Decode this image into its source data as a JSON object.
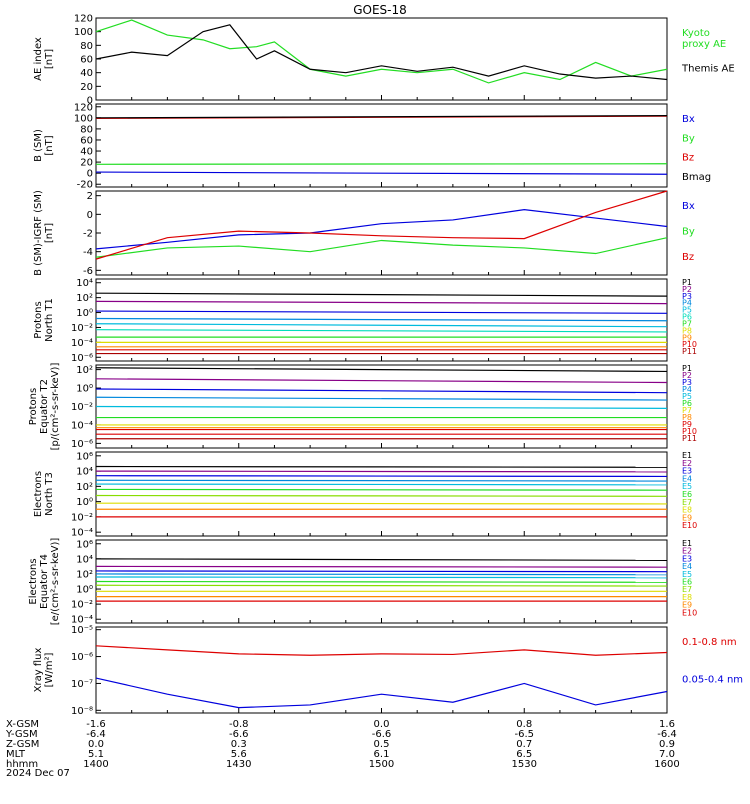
{
  "title": "GOES-18",
  "date_label": "2024 Dec 07",
  "colors": {
    "black": "#000000",
    "green": "#22dd22",
    "blue": "#0000dd",
    "red": "#dd0000",
    "cyan": "#00bbdd",
    "teal": "#00ddbb",
    "yellow": "#dddd00",
    "orange": "#ff8800",
    "purple": "#880088",
    "navy": "#000088",
    "darkred": "#aa0000"
  },
  "chart_data": [
    {
      "type": "line",
      "panel": "ae",
      "ylabel": "AE index\n[nT]",
      "ylim": [
        0,
        120
      ],
      "yticks": [
        "0",
        "20",
        "40",
        "60",
        "80",
        "100",
        "120"
      ],
      "x": [
        -1.6,
        -1.4,
        -1.2,
        -1.0,
        -0.85,
        -0.7,
        -0.6,
        -0.4,
        -0.2,
        0.0,
        0.2,
        0.4,
        0.6,
        0.8,
        1.0,
        1.2,
        1.4,
        1.6
      ],
      "series": [
        {
          "name": "Kyoto\nproxy AE",
          "color": "#22dd22",
          "values": [
            100,
            117,
            95,
            88,
            75,
            78,
            85,
            45,
            35,
            45,
            40,
            45,
            25,
            40,
            30,
            55,
            35,
            45
          ]
        },
        {
          "name": "Themis AE",
          "color": "#000000",
          "values": [
            60,
            70,
            65,
            100,
            110,
            60,
            72,
            45,
            40,
            50,
            42,
            48,
            35,
            50,
            38,
            32,
            35,
            30
          ]
        }
      ]
    },
    {
      "type": "line",
      "panel": "bsm",
      "ylabel": "B (SM)\n[nT]",
      "ylim": [
        -25,
        125
      ],
      "yticks": [
        "-20",
        "0",
        "20",
        "40",
        "60",
        "80",
        "100",
        "120"
      ],
      "x": [
        -1.6,
        1.6
      ],
      "series": [
        {
          "name": "Bx",
          "color": "#0000dd",
          "values": [
            2,
            -2
          ]
        },
        {
          "name": "By",
          "color": "#22dd22",
          "values": [
            16,
            17
          ]
        },
        {
          "name": "Bz",
          "color": "#dd0000",
          "values": [
            99,
            103
          ]
        },
        {
          "name": "Bmag",
          "color": "#000000",
          "values": [
            100,
            104
          ]
        }
      ]
    },
    {
      "type": "line",
      "panel": "bdiff",
      "ylabel": "B (SM)-IGRF (SM)\n[nT]",
      "ylim": [
        -6.5,
        2.5
      ],
      "yticks": [
        "-6",
        "-4",
        "-2",
        "0",
        "2"
      ],
      "x": [
        -1.6,
        -1.2,
        -0.8,
        -0.4,
        0.0,
        0.4,
        0.8,
        1.2,
        1.6
      ],
      "series": [
        {
          "name": "Bx",
          "color": "#0000dd",
          "values": [
            -3.7,
            -3.0,
            -2.2,
            -2.0,
            -1.0,
            -0.6,
            0.5,
            -0.4,
            -1.3
          ]
        },
        {
          "name": "By",
          "color": "#22dd22",
          "values": [
            -4.6,
            -3.6,
            -3.4,
            -4.0,
            -2.8,
            -3.3,
            -3.6,
            -4.2,
            -2.5
          ]
        },
        {
          "name": "Bz",
          "color": "#dd0000",
          "values": [
            -4.8,
            -2.5,
            -1.8,
            -2.0,
            -2.3,
            -2.5,
            -2.6,
            0.2,
            2.5
          ]
        }
      ]
    },
    {
      "type": "line",
      "panel": "protons_t1",
      "ylabel": "Protons\nNorth T1",
      "log": true,
      "ylim": [
        -6.5,
        4.5
      ],
      "yticks": [
        "10⁻⁶",
        "10⁻⁴",
        "10⁻²",
        "10⁰",
        "10²",
        "10⁴"
      ],
      "x": [
        -1.6,
        1.6
      ],
      "series": [
        {
          "name": "P1",
          "color": "#000000",
          "values": [
            2.6,
            2.2
          ]
        },
        {
          "name": "P2",
          "color": "#880088",
          "values": [
            1.5,
            1.2
          ]
        },
        {
          "name": "P3",
          "color": "#0000dd",
          "values": [
            0.2,
            -0.1
          ]
        },
        {
          "name": "P4",
          "color": "#0088dd",
          "values": [
            -0.8,
            -1.1
          ]
        },
        {
          "name": "P5",
          "color": "#00bbdd",
          "values": [
            -1.5,
            -1.9
          ]
        },
        {
          "name": "P6",
          "color": "#00ddbb",
          "values": [
            -2.3,
            -2.6
          ]
        },
        {
          "name": "P7",
          "color": "#22dd22",
          "values": [
            -3.3,
            -3.3
          ]
        },
        {
          "name": "P8",
          "color": "#dddd00",
          "values": [
            -4.0,
            -4.0
          ]
        },
        {
          "name": "P9",
          "color": "#ff8800",
          "values": [
            -4.6,
            -4.6
          ]
        },
        {
          "name": "P10",
          "color": "#dd0000",
          "values": [
            -5.0,
            -5.0
          ]
        },
        {
          "name": "P11",
          "color": "#aa0000",
          "values": [
            -5.5,
            -5.5
          ]
        }
      ]
    },
    {
      "type": "line",
      "panel": "protons_t2",
      "ylabel": "Protons\nEquator T2\n[p/(cm²-s-sr-keV)]",
      "log": true,
      "ylim": [
        -6.5,
        2.5
      ],
      "yticks": [
        "10⁻⁶",
        "10⁻⁴",
        "10⁻²",
        "10⁰",
        "10²"
      ],
      "x": [
        -1.6,
        1.6
      ],
      "series": [
        {
          "name": "P1",
          "color": "#000000",
          "values": [
            2.2,
            1.8
          ]
        },
        {
          "name": "P2",
          "color": "#880088",
          "values": [
            1.0,
            0.6
          ]
        },
        {
          "name": "P3",
          "color": "#0000dd",
          "values": [
            -0.1,
            -0.5
          ]
        },
        {
          "name": "P4",
          "color": "#0088dd",
          "values": [
            -1.0,
            -1.3
          ]
        },
        {
          "name": "P5",
          "color": "#00bbdd",
          "values": [
            -2.0,
            -2.2
          ]
        },
        {
          "name": "P6",
          "color": "#22dd22",
          "values": [
            -3.2,
            -3.2
          ]
        },
        {
          "name": "P7",
          "color": "#dddd00",
          "values": [
            -4.0,
            -4.0
          ]
        },
        {
          "name": "P8",
          "color": "#ff8800",
          "values": [
            -4.3,
            -4.3
          ]
        },
        {
          "name": "P9",
          "color": "#dd0000",
          "values": [
            -4.5,
            -4.5
          ]
        },
        {
          "name": "P10",
          "color": "#dd0000",
          "values": [
            -5.0,
            -5.0
          ]
        },
        {
          "name": "P11",
          "color": "#aa0000",
          "values": [
            -5.5,
            -5.5
          ]
        }
      ]
    },
    {
      "type": "line",
      "panel": "electrons_t3",
      "ylabel": "Electrons\nNorth T3",
      "log": true,
      "ylim": [
        -4.5,
        6.5
      ],
      "yticks": [
        "10⁻⁴",
        "10⁻²",
        "10⁰",
        "10²",
        "10⁴",
        "10⁶"
      ],
      "x": [
        -1.6,
        1.6
      ],
      "series": [
        {
          "name": "E1",
          "color": "#000000",
          "values": [
            4.6,
            4.5
          ]
        },
        {
          "name": "E2",
          "color": "#880088",
          "values": [
            4.0,
            3.9
          ]
        },
        {
          "name": "E3",
          "color": "#0000dd",
          "values": [
            3.4,
            3.3
          ]
        },
        {
          "name": "E4",
          "color": "#0088dd",
          "values": [
            2.8,
            2.7
          ]
        },
        {
          "name": "E5",
          "color": "#00bbdd",
          "values": [
            2.3,
            2.2
          ]
        },
        {
          "name": "E6",
          "color": "#22dd22",
          "values": [
            1.6,
            1.5
          ]
        },
        {
          "name": "E7",
          "color": "#88dd00",
          "values": [
            0.8,
            0.7
          ]
        },
        {
          "name": "E8",
          "color": "#dddd00",
          "values": [
            -0.2,
            -0.3
          ]
        },
        {
          "name": "E9",
          "color": "#ff8800",
          "values": [
            -1.0,
            -1.0
          ]
        },
        {
          "name": "E10",
          "color": "#dd0000",
          "values": [
            -2.0,
            -2.0
          ]
        }
      ]
    },
    {
      "type": "line",
      "panel": "electrons_t4",
      "ylabel": "Electrons\nEquator T4\n[e/(cm²-s-sr-keV)]",
      "log": true,
      "ylim": [
        -4.5,
        6.5
      ],
      "yticks": [
        "10⁻⁴",
        "10⁻²",
        "10⁰",
        "10²",
        "10⁴",
        "10⁶"
      ],
      "x": [
        -1.6,
        1.6
      ],
      "series": [
        {
          "name": "E1",
          "color": "#000000",
          "values": [
            4.0,
            3.8
          ]
        },
        {
          "name": "E2",
          "color": "#880088",
          "values": [
            3.0,
            2.9
          ]
        },
        {
          "name": "E3",
          "color": "#0000dd",
          "values": [
            2.4,
            2.3
          ]
        },
        {
          "name": "E4",
          "color": "#0088dd",
          "values": [
            2.0,
            1.9
          ]
        },
        {
          "name": "E5",
          "color": "#00bbdd",
          "values": [
            1.6,
            1.5
          ]
        },
        {
          "name": "E6",
          "color": "#22dd22",
          "values": [
            1.0,
            0.9
          ]
        },
        {
          "name": "E7",
          "color": "#88dd00",
          "values": [
            0.5,
            0.4
          ]
        },
        {
          "name": "E8",
          "color": "#dddd00",
          "values": [
            -0.3,
            -0.3
          ]
        },
        {
          "name": "E9",
          "color": "#ff8800",
          "values": [
            -1.0,
            -1.0
          ]
        },
        {
          "name": "E10",
          "color": "#dd0000",
          "values": [
            -1.6,
            -1.6
          ]
        }
      ]
    },
    {
      "type": "line",
      "panel": "xray",
      "ylabel": "Xray flux\n[W/m²]",
      "log": true,
      "ylim": [
        -8.1,
        -4.9
      ],
      "yticks": [
        "10⁻⁸",
        "10⁻⁷",
        "10⁻⁶",
        "10⁻⁵"
      ],
      "x": [
        -1.6,
        -1.2,
        -0.8,
        -0.4,
        0.0,
        0.4,
        0.8,
        1.2,
        1.6
      ],
      "series": [
        {
          "name": "0.1-0.8 nm",
          "color": "#dd0000",
          "values": [
            -5.6,
            -5.75,
            -5.9,
            -5.95,
            -5.9,
            -5.92,
            -5.75,
            -5.95,
            -5.85
          ]
        },
        {
          "name": "0.05-0.4 nm",
          "color": "#0000dd",
          "values": [
            -6.8,
            -7.4,
            -7.9,
            -7.8,
            -7.4,
            -7.7,
            -7.0,
            -7.8,
            -7.3
          ]
        }
      ]
    }
  ],
  "x_axis": {
    "rows": [
      {
        "label": "X-GSM",
        "values": [
          "-1.6",
          "-0.8",
          "0.0",
          "0.8",
          "1.6"
        ]
      },
      {
        "label": "Y-GSM",
        "values": [
          "-6.4",
          "-6.6",
          "-6.6",
          "-6.5",
          "-6.4"
        ]
      },
      {
        "label": "Z-GSM",
        "values": [
          "0.0",
          "0.3",
          "0.5",
          "0.7",
          "0.9"
        ]
      },
      {
        "label": "MLT",
        "values": [
          "5.1",
          "5.6",
          "6.1",
          "6.5",
          "7.0"
        ]
      },
      {
        "label": "hhmm",
        "values": [
          "1400",
          "1430",
          "1500",
          "1530",
          "1600"
        ]
      }
    ]
  }
}
